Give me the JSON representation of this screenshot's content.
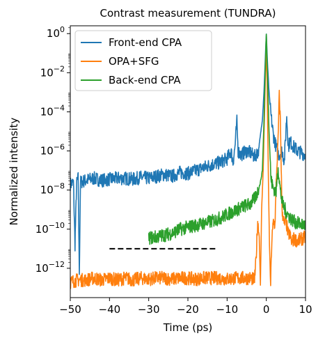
{
  "chart_data": {
    "type": "line",
    "title": "Contrast measurement (TUNDRA)",
    "xlabel": "Time (ps)",
    "ylabel": "Normalized intensity",
    "yscale": "log",
    "xlim": [
      -50,
      10
    ],
    "ylim_exp": [
      -13.5,
      0.4
    ],
    "xticks": [
      -50,
      -40,
      -30,
      -20,
      -10,
      0,
      10
    ],
    "xtick_labels": [
      "−50",
      "−40",
      "−30",
      "−20",
      "−10",
      "0",
      "10"
    ],
    "yticks": [
      {
        "base": "10",
        "exp": "0",
        "value_exp": 0
      },
      {
        "base": "10",
        "exp": "−2",
        "value_exp": -2
      },
      {
        "base": "10",
        "exp": "−4",
        "value_exp": -4
      },
      {
        "base": "10",
        "exp": "−6",
        "value_exp": -6
      },
      {
        "base": "10",
        "exp": "−8",
        "value_exp": -8
      },
      {
        "base": "10",
        "exp": "−10",
        "value_exp": -10
      },
      {
        "base": "10",
        "exp": "−12",
        "value_exp": -12
      }
    ],
    "legend_position": "top-left",
    "series": [
      {
        "name": "Front-end CPA",
        "color": "#1f77b4",
        "points": [
          [
            -50.0,
            -7.7
          ],
          [
            -49.2,
            -7.6
          ],
          [
            -48.8,
            -10.8
          ],
          [
            -48.4,
            -7.7
          ],
          [
            -48.0,
            -7.4
          ],
          [
            -47.7,
            -12.2
          ],
          [
            -47.4,
            -7.6
          ],
          [
            -46.0,
            -7.5
          ],
          [
            -44.0,
            -7.4
          ],
          [
            -42.0,
            -7.5
          ],
          [
            -40.0,
            -7.45
          ],
          [
            -38.0,
            -7.4
          ],
          [
            -36.0,
            -7.4
          ],
          [
            -34.0,
            -7.45
          ],
          [
            -32.0,
            -7.35
          ],
          [
            -30.0,
            -7.4
          ],
          [
            -28.0,
            -7.3
          ],
          [
            -26.0,
            -7.2
          ],
          [
            -24.0,
            -7.3
          ],
          [
            -22.0,
            -7.1
          ],
          [
            -20.0,
            -7.15
          ],
          [
            -18.0,
            -7.0
          ],
          [
            -16.0,
            -6.85
          ],
          [
            -14.0,
            -6.7
          ],
          [
            -12.0,
            -6.6
          ],
          [
            -10.0,
            -6.4
          ],
          [
            -9.0,
            -6.0
          ],
          [
            -8.5,
            -6.6
          ],
          [
            -8.0,
            -5.8
          ],
          [
            -7.5,
            -4.5
          ],
          [
            -7.2,
            -6.0
          ],
          [
            -6.5,
            -6.2
          ],
          [
            -5.0,
            -6.0
          ],
          [
            -4.0,
            -6.1
          ],
          [
            -3.0,
            -6.3
          ],
          [
            -2.0,
            -6.0
          ],
          [
            -1.5,
            -5.2
          ],
          [
            -1.0,
            -4.4
          ],
          [
            -0.6,
            -3.0
          ],
          [
            -0.3,
            -1.5
          ],
          [
            0.0,
            0.0
          ],
          [
            0.3,
            -1.5
          ],
          [
            0.7,
            -3.0
          ],
          [
            1.2,
            -4.2
          ],
          [
            1.8,
            -5.2
          ],
          [
            2.5,
            -5.8
          ],
          [
            3.2,
            -6.2
          ],
          [
            4.0,
            -6.0
          ],
          [
            4.6,
            -6.5
          ],
          [
            5.2,
            -4.2
          ],
          [
            5.6,
            -5.8
          ],
          [
            6.0,
            -5.5
          ],
          [
            7.0,
            -5.8
          ],
          [
            8.0,
            -6.0
          ],
          [
            9.0,
            -6.1
          ],
          [
            10.0,
            -6.2
          ]
        ]
      },
      {
        "name": "OPA+SFG",
        "color": "#ff7f0e",
        "points": [
          [
            -50.0,
            -12.7
          ],
          [
            -48.0,
            -12.6
          ],
          [
            -46.0,
            -12.6
          ],
          [
            -44.0,
            -12.5
          ],
          [
            -42.0,
            -12.6
          ],
          [
            -40.0,
            -12.5
          ],
          [
            -38.0,
            -12.6
          ],
          [
            -36.0,
            -12.5
          ],
          [
            -34.0,
            -12.6
          ],
          [
            -32.0,
            -12.5
          ],
          [
            -30.0,
            -12.55
          ],
          [
            -28.0,
            -12.5
          ],
          [
            -26.0,
            -12.5
          ],
          [
            -24.0,
            -12.55
          ],
          [
            -22.0,
            -12.5
          ],
          [
            -20.0,
            -12.5
          ],
          [
            -18.0,
            -12.55
          ],
          [
            -16.0,
            -12.5
          ],
          [
            -14.0,
            -12.5
          ],
          [
            -12.0,
            -12.5
          ],
          [
            -10.0,
            -12.55
          ],
          [
            -8.0,
            -12.5
          ],
          [
            -6.0,
            -12.5
          ],
          [
            -4.0,
            -12.5
          ],
          [
            -3.0,
            -12.6
          ],
          [
            -2.6,
            -11.5
          ],
          [
            -2.2,
            -9.6
          ],
          [
            -1.8,
            -10.4
          ],
          [
            -1.5,
            -12.9
          ],
          [
            -1.2,
            -9.0
          ],
          [
            -0.8,
            -7.0
          ],
          [
            -0.5,
            -4.5
          ],
          [
            -0.2,
            -2.0
          ],
          [
            0.0,
            -0.8
          ],
          [
            0.2,
            -2.5
          ],
          [
            0.5,
            -7.0
          ],
          [
            0.8,
            -10.8
          ],
          [
            1.1,
            -12.8
          ],
          [
            1.4,
            -10.6
          ],
          [
            1.8,
            -9.6
          ],
          [
            2.2,
            -9.8
          ],
          [
            2.6,
            -7.2
          ],
          [
            3.0,
            -5.5
          ],
          [
            3.3,
            -3.2
          ],
          [
            3.6,
            -4.5
          ],
          [
            4.0,
            -9.0
          ],
          [
            4.6,
            -9.8
          ],
          [
            5.0,
            -9.5
          ],
          [
            5.5,
            -10.2
          ],
          [
            6.0,
            -10.3
          ],
          [
            6.5,
            -10.7
          ],
          [
            7.0,
            -10.5
          ],
          [
            8.0,
            -10.6
          ],
          [
            9.0,
            -10.5
          ],
          [
            10.0,
            -10.4
          ]
        ]
      },
      {
        "name": "Back-end CPA",
        "color": "#2ca02c",
        "points": [
          [
            -30.0,
            -10.45
          ],
          [
            -28.0,
            -10.4
          ],
          [
            -26.0,
            -10.3
          ],
          [
            -24.0,
            -10.2
          ],
          [
            -22.0,
            -10.0
          ],
          [
            -20.0,
            -9.9
          ],
          [
            -18.0,
            -9.8
          ],
          [
            -16.0,
            -9.7
          ],
          [
            -14.0,
            -9.6
          ],
          [
            -12.0,
            -9.45
          ],
          [
            -10.0,
            -9.25
          ],
          [
            -8.0,
            -9.05
          ],
          [
            -6.0,
            -8.85
          ],
          [
            -4.0,
            -8.7
          ],
          [
            -3.0,
            -8.45
          ],
          [
            -2.0,
            -8.0
          ],
          [
            -1.5,
            -7.6
          ],
          [
            -1.0,
            -7.0
          ],
          [
            -0.6,
            -4.5
          ],
          [
            -0.3,
            -2.0
          ],
          [
            0.0,
            0.0
          ],
          [
            0.3,
            -2.0
          ],
          [
            0.7,
            -5.0
          ],
          [
            1.2,
            -7.5
          ],
          [
            1.8,
            -7.9
          ],
          [
            2.5,
            -8.1
          ],
          [
            3.0,
            -6.8
          ],
          [
            3.5,
            -7.9
          ],
          [
            4.0,
            -8.6
          ],
          [
            5.0,
            -9.1
          ],
          [
            6.0,
            -9.4
          ],
          [
            7.0,
            -9.6
          ],
          [
            8.0,
            -9.7
          ],
          [
            9.0,
            -9.75
          ],
          [
            10.0,
            -9.8
          ]
        ]
      }
    ],
    "dashed_line": {
      "x": [
        -40,
        -13
      ],
      "y_exp": -11.0,
      "color": "#000000"
    }
  }
}
